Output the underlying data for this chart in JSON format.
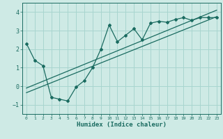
{
  "xlabel": "Humidex (Indice chaleur)",
  "ylabel": "",
  "bg_color": "#ceeae5",
  "grid_color": "#a8d5cf",
  "line_color": "#1a6b60",
  "ylim": [
    -1.5,
    4.5
  ],
  "xlim": [
    -0.5,
    23.5
  ],
  "yticks": [
    -1,
    0,
    1,
    2,
    3,
    4
  ],
  "xticks": [
    0,
    1,
    2,
    3,
    4,
    5,
    6,
    7,
    8,
    9,
    10,
    11,
    12,
    13,
    14,
    15,
    16,
    17,
    18,
    19,
    20,
    21,
    22,
    23
  ],
  "data_x": [
    0,
    1,
    2,
    3,
    4,
    5,
    6,
    7,
    8,
    9,
    10,
    11,
    12,
    13,
    14,
    15,
    16,
    17,
    18,
    19,
    20,
    21,
    22,
    23
  ],
  "data_y": [
    2.3,
    1.4,
    1.1,
    -0.6,
    -0.7,
    -0.8,
    -0.05,
    0.3,
    1.0,
    2.0,
    3.3,
    2.4,
    2.75,
    3.1,
    2.5,
    3.4,
    3.5,
    3.45,
    3.6,
    3.7,
    3.55,
    3.7,
    3.7,
    3.7
  ],
  "line1_x": [
    0,
    23
  ],
  "line1_y": [
    -0.35,
    3.75
  ],
  "line2_x": [
    0,
    23
  ],
  "line2_y": [
    -0.1,
    4.1
  ]
}
